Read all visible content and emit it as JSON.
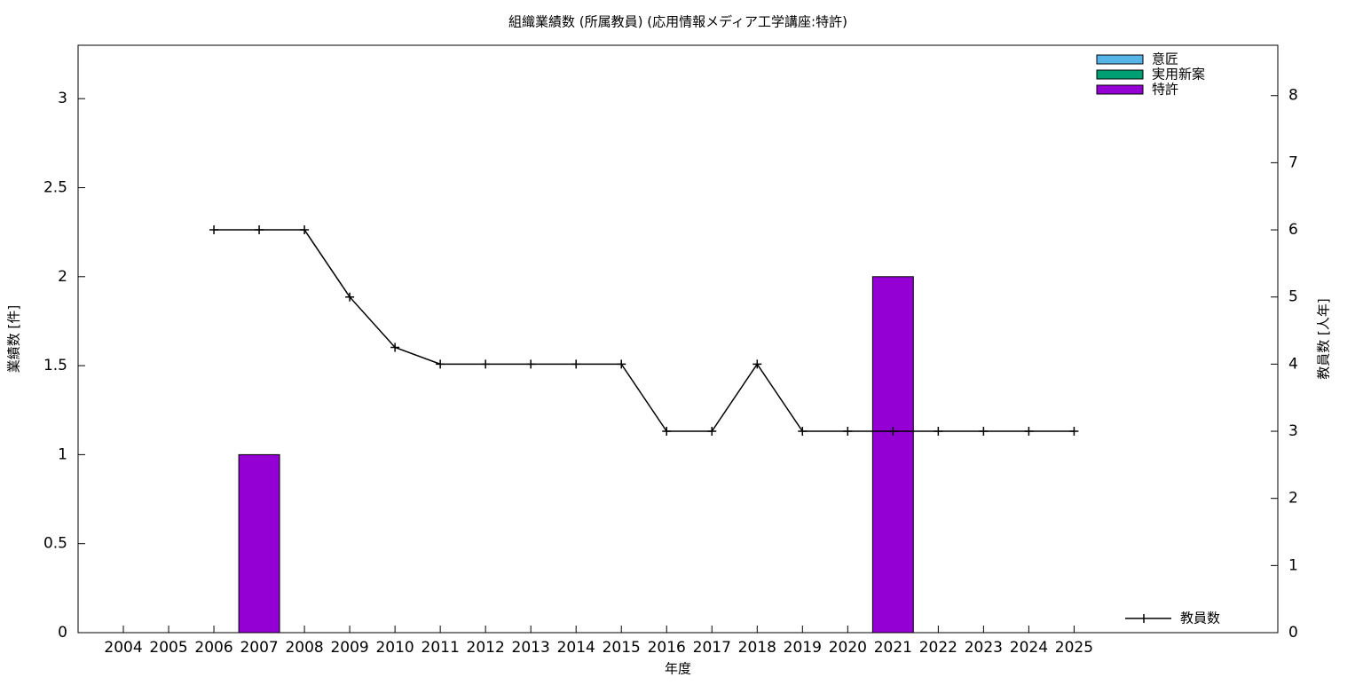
{
  "chart_data": {
    "type": "bar",
    "stacked": true,
    "title": "組織業績数 (所属教員) (応用情報メディア工学講座:特許)",
    "x_label": "年度",
    "y_label": "業績数 [件]",
    "y2_label": "教員数 [人年]",
    "x": [
      2004,
      2005,
      2006,
      2007,
      2008,
      2009,
      2010,
      2011,
      2012,
      2013,
      2014,
      2015,
      2016,
      2017,
      2018,
      2019,
      2020,
      2021,
      2022,
      2023,
      2024,
      2025
    ],
    "xlim": [
      2003,
      2029.5
    ],
    "ylim": [
      0,
      3.3
    ],
    "yticks": [
      0,
      0.5,
      1,
      1.5,
      2,
      2.5,
      3
    ],
    "y2lim": [
      0,
      8.75
    ],
    "y2ticks": [
      0,
      1,
      2,
      3,
      4,
      5,
      6,
      7,
      8
    ],
    "legend": "top right",
    "grid": false,
    "series": [
      {
        "name": "意匠",
        "color": "#56b4e9",
        "values": [
          0,
          0,
          0,
          0,
          0,
          0,
          0,
          0,
          0,
          0,
          0,
          0,
          0,
          0,
          0,
          0,
          0,
          0,
          0,
          0,
          0,
          0
        ]
      },
      {
        "name": "実用新案",
        "color": "#009e73",
        "values": [
          0,
          0,
          0,
          0,
          0,
          0,
          0,
          0,
          0,
          0,
          0,
          0,
          0,
          0,
          0,
          0,
          0,
          0,
          0,
          0,
          0,
          0
        ]
      },
      {
        "name": "特許",
        "color": "#9400d3",
        "values": [
          0,
          0,
          0,
          1,
          0,
          0,
          0,
          0,
          0,
          0,
          0,
          0,
          0,
          0,
          0,
          0,
          0,
          2,
          0,
          0,
          0,
          0
        ]
      },
      {
        "name": "教員数",
        "color": "#000000",
        "type": "line",
        "axis": "y2",
        "legend": "bottom right",
        "values": [
          null,
          null,
          6,
          6,
          6,
          5,
          4.25,
          4,
          4,
          4,
          4,
          4,
          3,
          3,
          4,
          3,
          3,
          3,
          3,
          3,
          3,
          3
        ]
      }
    ]
  }
}
